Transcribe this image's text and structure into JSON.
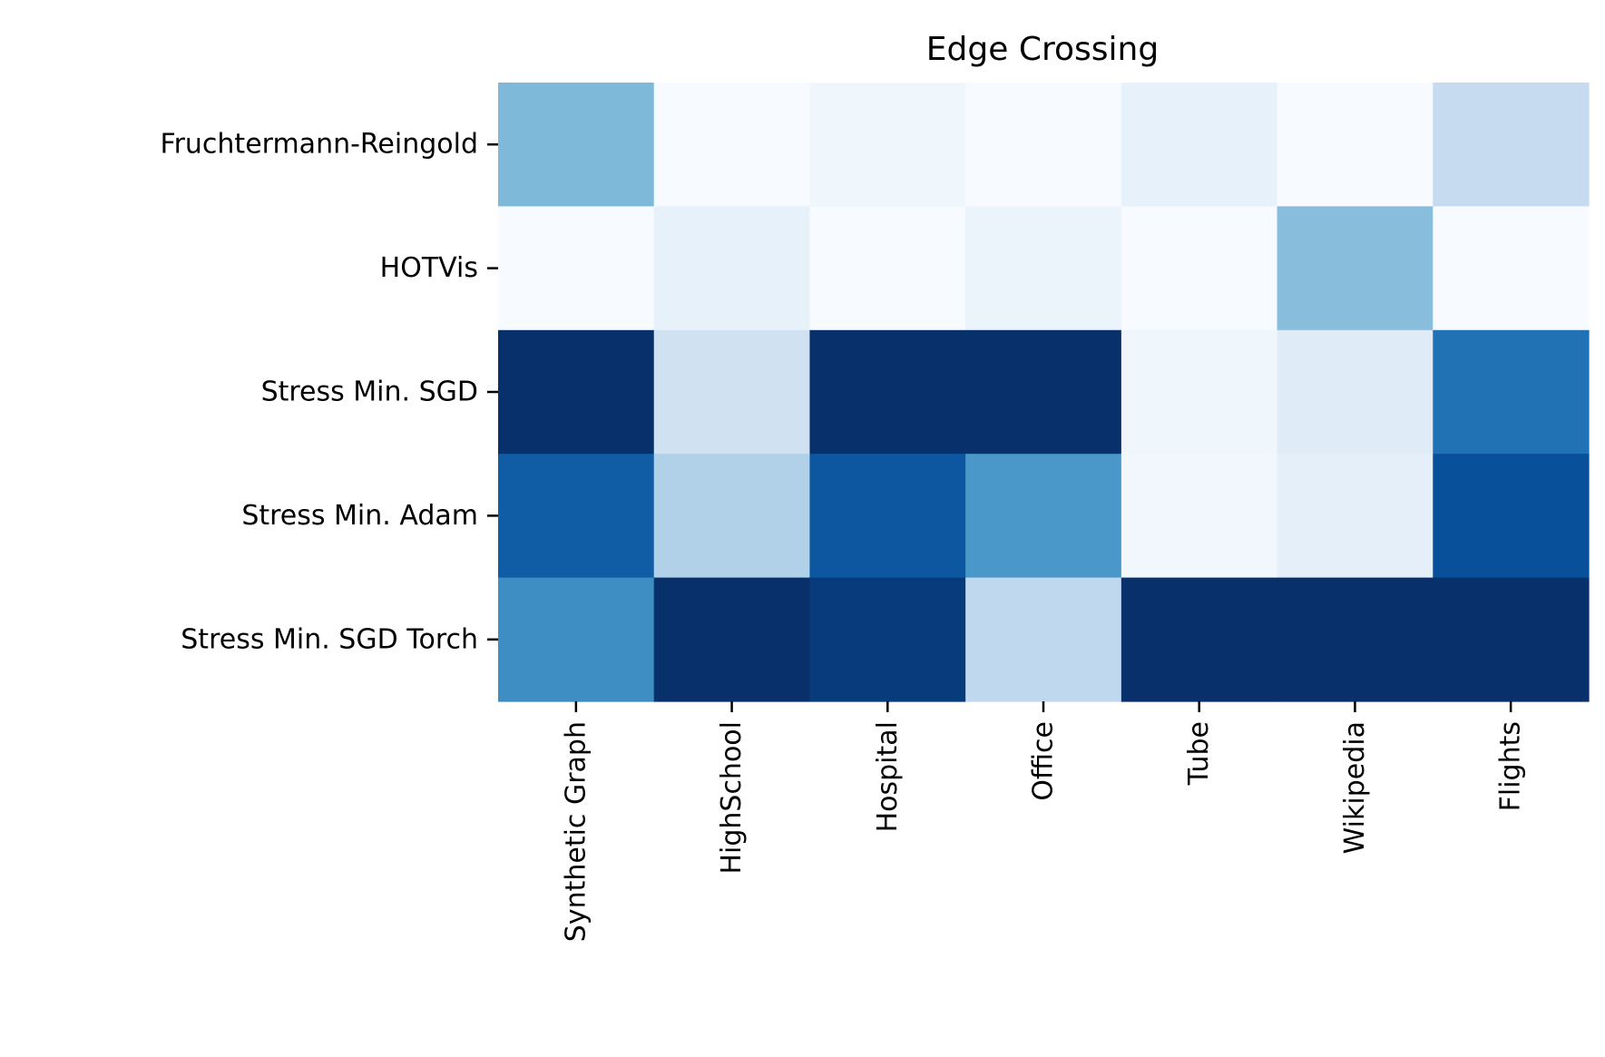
{
  "chart_data": {
    "type": "heatmap",
    "title": "Edge Crossing",
    "xlabel": "",
    "ylabel": "",
    "colormap": "Blues",
    "colorbar": false,
    "grid": false,
    "columns": [
      "Synthetic Graph",
      "HighSchool",
      "Hospital",
      "Office",
      "Tube",
      "Wikipedia",
      "Flights"
    ],
    "rows": [
      "Fruchtermann-Reingold",
      "HOTVis",
      "Stress Min. SGD",
      "Stress Min. Adam",
      "Stress Min. SGD Torch"
    ],
    "values": [
      [
        0.45,
        0.0,
        0.04,
        0.0,
        0.08,
        0.0,
        0.25
      ],
      [
        0.0,
        0.08,
        0.0,
        0.06,
        0.0,
        0.43,
        0.0
      ],
      [
        1.0,
        0.2,
        1.0,
        1.0,
        0.04,
        0.12,
        0.75
      ],
      [
        0.83,
        0.32,
        0.85,
        0.6,
        0.03,
        0.09,
        0.88
      ],
      [
        0.64,
        1.0,
        0.96,
        0.27,
        1.0,
        1.0,
        1.0
      ]
    ],
    "value_range": [
      0,
      1
    ]
  }
}
